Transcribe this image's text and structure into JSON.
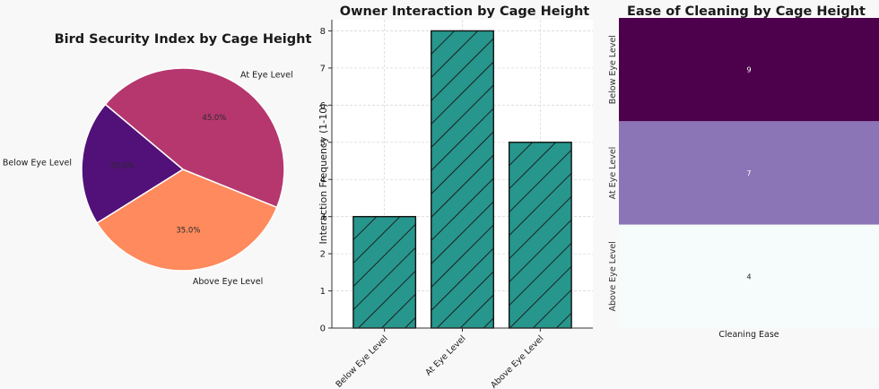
{
  "chart_data": [
    {
      "type": "pie",
      "title": "Bird Security Index by Cage Height",
      "labels": [
        "Below Eye Level",
        "Above Eye Level",
        "At Eye Level"
      ],
      "values": [
        20.0,
        35.0,
        45.0
      ],
      "pct_labels": [
        "20.0%",
        "35.0%",
        "45.0%"
      ],
      "colors": [
        "#521179",
        "#fe8a5d",
        "#b5376e"
      ]
    },
    {
      "type": "bar",
      "title": "Owner Interaction by Cage Height",
      "categories": [
        "Below Eye Level",
        "At Eye Level",
        "Above Eye Level"
      ],
      "values": [
        3,
        8,
        5
      ],
      "xlabel": "",
      "ylabel": "Interaction Frequency (1-10)",
      "ylim": [
        0,
        8.3
      ],
      "yticks": [
        "0",
        "1",
        "2",
        "3",
        "4",
        "5",
        "6",
        "7",
        "8"
      ],
      "grid": true,
      "hatch": "diagonal",
      "color": "#27968d"
    },
    {
      "type": "heatmap",
      "title": "Ease of Cleaning by Cage Height",
      "rows": [
        "Below Eye Level",
        "At Eye Level",
        "Above Eye Level"
      ],
      "columns": [
        "Cleaning Ease"
      ],
      "values": [
        [
          9
        ],
        [
          7
        ],
        [
          4
        ]
      ],
      "cell_labels": [
        "9",
        "7",
        "4"
      ],
      "colormap": "BuPu",
      "colors": [
        "#4d004b",
        "#8c75b6",
        "#f6fcfc"
      ]
    }
  ]
}
